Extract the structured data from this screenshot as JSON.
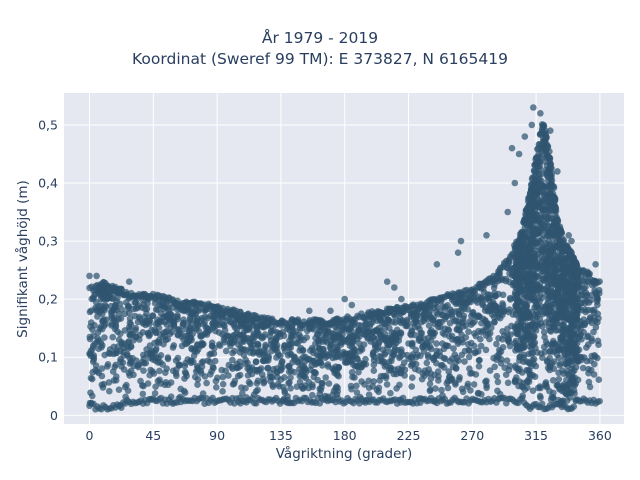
{
  "title_line1": "År 1979 - 2019",
  "title_line2": "Koordinat (Sweref 99 TM): E 373827, N 6165419",
  "marker_color": "#2f5570",
  "plot_bg": "#e5e8f0",
  "grid_color": "#ffffff",
  "chart_data": {
    "type": "scatter",
    "title": "År 1979 - 2019\nKoordinat (Sweref 99 TM): E 373827, N 6165419",
    "xlabel": "Vågriktning (grader)",
    "ylabel": "Signifikant våghöjd (m)",
    "xlim": [
      -18,
      377
    ],
    "ylim": [
      -0.015,
      0.555
    ],
    "xticks": [
      0,
      45,
      90,
      135,
      180,
      225,
      270,
      315,
      360
    ],
    "xtick_labels": [
      "0",
      "45",
      "90",
      "135",
      "180",
      "225",
      "270",
      "315",
      "360"
    ],
    "yticks": [
      0,
      0.1,
      0.2,
      0.3,
      0.4,
      0.5
    ],
    "ytick_labels": [
      "0",
      "0,1",
      "0,2",
      "0,3",
      "0,4",
      "0,5"
    ],
    "grid": true,
    "envelope": {
      "x": [
        0,
        10,
        20,
        30,
        45,
        60,
        90,
        120,
        135,
        150,
        170,
        180,
        200,
        225,
        240,
        255,
        270,
        285,
        295,
        305,
        310,
        315,
        320,
        325,
        330,
        335,
        340,
        345,
        350,
        355,
        360
      ],
      "ymax": [
        0.22,
        0.23,
        0.22,
        0.21,
        0.21,
        0.2,
        0.19,
        0.17,
        0.165,
        0.165,
        0.165,
        0.17,
        0.18,
        0.19,
        0.2,
        0.21,
        0.22,
        0.24,
        0.27,
        0.32,
        0.38,
        0.45,
        0.51,
        0.45,
        0.34,
        0.3,
        0.28,
        0.26,
        0.25,
        0.24,
        0.23
      ],
      "ymin": [
        0.01,
        0.01,
        0.01,
        0.02,
        0.02,
        0.02,
        0.02,
        0.02,
        0.02,
        0.02,
        0.02,
        0.02,
        0.02,
        0.02,
        0.02,
        0.02,
        0.02,
        0.02,
        0.02,
        0.02,
        0.01,
        0.01,
        0.01,
        0.01,
        0.01,
        0.01,
        0.01,
        0.02,
        0.02,
        0.02,
        0.02
      ]
    },
    "outliers": [
      {
        "x": 0,
        "y": 0.24
      },
      {
        "x": 5,
        "y": 0.24
      },
      {
        "x": 28,
        "y": 0.23
      },
      {
        "x": 155,
        "y": 0.18
      },
      {
        "x": 170,
        "y": 0.18
      },
      {
        "x": 180,
        "y": 0.2
      },
      {
        "x": 185,
        "y": 0.19
      },
      {
        "x": 210,
        "y": 0.23
      },
      {
        "x": 215,
        "y": 0.22
      },
      {
        "x": 220,
        "y": 0.2
      },
      {
        "x": 245,
        "y": 0.26
      },
      {
        "x": 260,
        "y": 0.28
      },
      {
        "x": 262,
        "y": 0.3
      },
      {
        "x": 280,
        "y": 0.31
      },
      {
        "x": 295,
        "y": 0.35
      },
      {
        "x": 300,
        "y": 0.4
      },
      {
        "x": 298,
        "y": 0.46
      },
      {
        "x": 303,
        "y": 0.45
      },
      {
        "x": 307,
        "y": 0.48
      },
      {
        "x": 312,
        "y": 0.5
      },
      {
        "x": 313,
        "y": 0.53
      },
      {
        "x": 318,
        "y": 0.52
      },
      {
        "x": 325,
        "y": 0.49
      },
      {
        "x": 330,
        "y": 0.42
      },
      {
        "x": 338,
        "y": 0.31
      },
      {
        "x": 340,
        "y": 0.3
      },
      {
        "x": 357,
        "y": 0.26
      }
    ]
  }
}
